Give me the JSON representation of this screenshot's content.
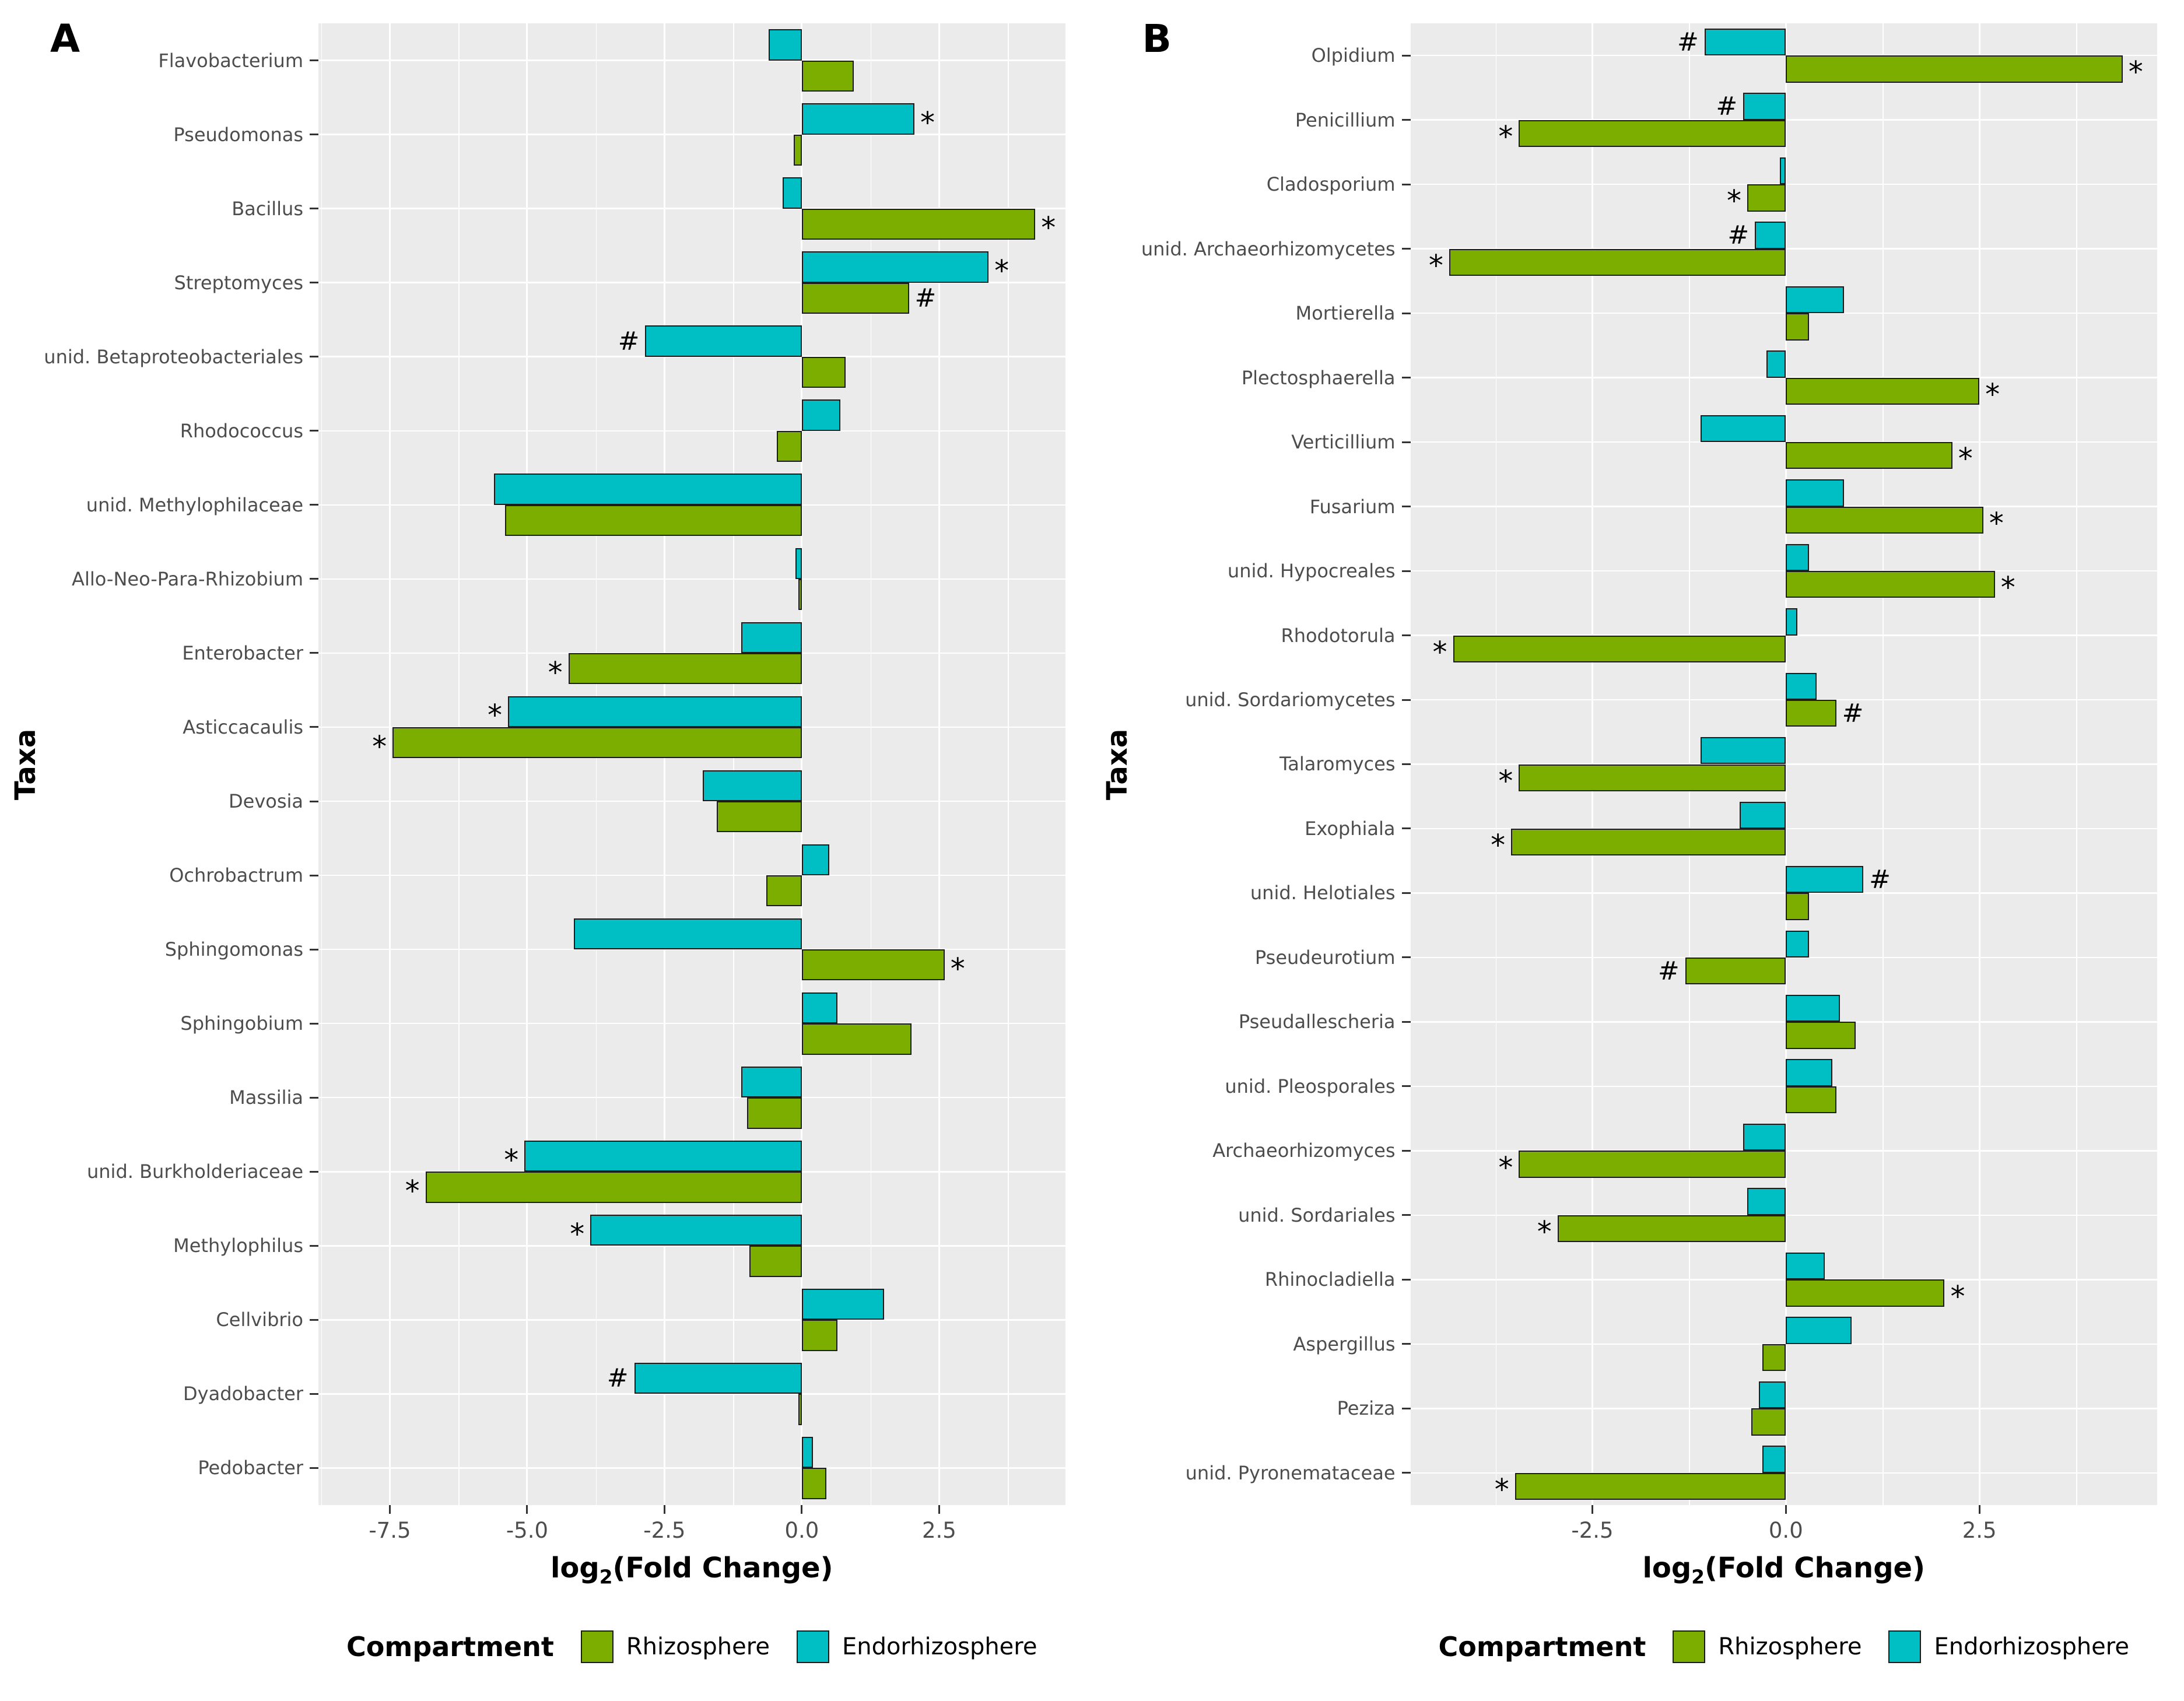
{
  "legend": {
    "title": "Compartment",
    "items": [
      {
        "label": "Rhizosphere",
        "key": "rhizosphere",
        "color": "#7cae00"
      },
      {
        "label": "Endorhizosphere",
        "key": "endorhizosphere",
        "color": "#00bfc4"
      }
    ]
  },
  "colors": {
    "rhizosphere": "#7cae00",
    "endorhizosphere": "#00bfc4",
    "panel_bg": "#ebebeb",
    "grid": "#ffffff",
    "bar_border": "#1c1c1c",
    "axis_text": "#4d4d4d"
  },
  "chart_data": [
    {
      "panel_label": "A",
      "type": "bar",
      "orientation": "horizontal",
      "xlabel": "log2(Fold Change)",
      "xlabel_prefix": "log",
      "xlabel_sub": "2",
      "xlabel_suffix": "(Fold Change)",
      "ylabel": "Taxa",
      "xlim": [
        -8.8,
        4.8
      ],
      "xticks": [
        -7.5,
        -5.0,
        -2.5,
        0.0,
        2.5
      ],
      "xtick_labels": [
        "-7.5",
        "-5.0",
        "-2.5",
        "0.0",
        "2.5"
      ],
      "grid": true,
      "legend_position": "bottom",
      "series_names": [
        "Rhizosphere",
        "Endorhizosphere"
      ],
      "taxa": [
        {
          "label": "Flavobacterium",
          "rhizosphere": 0.95,
          "rhizosphere_sig": "",
          "endorhizosphere": -0.6,
          "endorhizosphere_sig": ""
        },
        {
          "label": "Pseudomonas",
          "rhizosphere": -0.15,
          "rhizosphere_sig": "",
          "endorhizosphere": 2.05,
          "endorhizosphere_sig": "*"
        },
        {
          "label": "Bacillus",
          "rhizosphere": 4.25,
          "rhizosphere_sig": "*",
          "endorhizosphere": -0.35,
          "endorhizosphere_sig": ""
        },
        {
          "label": "Streptomyces",
          "rhizosphere": 1.95,
          "rhizosphere_sig": "#",
          "endorhizosphere": 3.4,
          "endorhizosphere_sig": "*"
        },
        {
          "label": "unid. Betaproteobacteriales",
          "rhizosphere": 0.8,
          "rhizosphere_sig": "",
          "endorhizosphere": -2.85,
          "endorhizosphere_sig": "#"
        },
        {
          "label": "Rhodococcus",
          "rhizosphere": -0.45,
          "rhizosphere_sig": "",
          "endorhizosphere": 0.7,
          "endorhizosphere_sig": ""
        },
        {
          "label": "unid. Methylophilaceae",
          "rhizosphere": -5.4,
          "rhizosphere_sig": "",
          "endorhizosphere": -5.6,
          "endorhizosphere_sig": ""
        },
        {
          "label": "Allo-Neo-Para-Rhizobium",
          "rhizosphere": -0.06,
          "rhizosphere_sig": "",
          "endorhizosphere": -0.12,
          "endorhizosphere_sig": ""
        },
        {
          "label": "Enterobacter",
          "rhizosphere": -4.25,
          "rhizosphere_sig": "*",
          "endorhizosphere": -1.1,
          "endorhizosphere_sig": ""
        },
        {
          "label": "Asticcacaulis",
          "rhizosphere": -7.45,
          "rhizosphere_sig": "*",
          "endorhizosphere": -5.35,
          "endorhizosphere_sig": "*"
        },
        {
          "label": "Devosia",
          "rhizosphere": -1.55,
          "rhizosphere_sig": "",
          "endorhizosphere": -1.8,
          "endorhizosphere_sig": ""
        },
        {
          "label": "Ochrobactrum",
          "rhizosphere": -0.65,
          "rhizosphere_sig": "",
          "endorhizosphere": 0.5,
          "endorhizosphere_sig": ""
        },
        {
          "label": "Sphingomonas",
          "rhizosphere": 2.6,
          "rhizosphere_sig": "*",
          "endorhizosphere": -4.15,
          "endorhizosphere_sig": ""
        },
        {
          "label": "Sphingobium",
          "rhizosphere": 2.0,
          "rhizosphere_sig": "",
          "endorhizosphere": 0.65,
          "endorhizosphere_sig": ""
        },
        {
          "label": "Massilia",
          "rhizosphere": -1.0,
          "rhizosphere_sig": "",
          "endorhizosphere": -1.1,
          "endorhizosphere_sig": ""
        },
        {
          "label": "unid. Burkholderiaceae",
          "rhizosphere": -6.85,
          "rhizosphere_sig": "*",
          "endorhizosphere": -5.05,
          "endorhizosphere_sig": "*"
        },
        {
          "label": "Methylophilus",
          "rhizosphere": -0.95,
          "rhizosphere_sig": "",
          "endorhizosphere": -3.85,
          "endorhizosphere_sig": "*"
        },
        {
          "label": "Cellvibrio",
          "rhizosphere": 0.65,
          "rhizosphere_sig": "",
          "endorhizosphere": 1.5,
          "endorhizosphere_sig": ""
        },
        {
          "label": "Dyadobacter",
          "rhizosphere": -0.06,
          "rhizosphere_sig": "",
          "endorhizosphere": -3.05,
          "endorhizosphere_sig": "#"
        },
        {
          "label": "Pedobacter",
          "rhizosphere": 0.45,
          "rhizosphere_sig": "",
          "endorhizosphere": 0.2,
          "endorhizosphere_sig": ""
        }
      ]
    },
    {
      "panel_label": "B",
      "type": "bar",
      "orientation": "horizontal",
      "xlabel": "log2(Fold Change)",
      "xlabel_prefix": "log",
      "xlabel_sub": "2",
      "xlabel_suffix": "(Fold Change)",
      "ylabel": "Taxa",
      "xlim": [
        -4.85,
        4.8
      ],
      "xticks": [
        -2.5,
        0.0,
        2.5
      ],
      "xtick_labels": [
        "-2.5",
        "0.0",
        "2.5"
      ],
      "grid": true,
      "legend_position": "bottom",
      "series_names": [
        "Rhizosphere",
        "Endorhizosphere"
      ],
      "taxa": [
        {
          "label": "Olpidium",
          "rhizosphere": 4.35,
          "rhizosphere_sig": "*",
          "endorhizosphere": -1.05,
          "endorhizosphere_sig": "#"
        },
        {
          "label": "Penicillium",
          "rhizosphere": -3.45,
          "rhizosphere_sig": "*",
          "endorhizosphere": -0.55,
          "endorhizosphere_sig": "#"
        },
        {
          "label": "Cladosporium",
          "rhizosphere": -0.5,
          "rhizosphere_sig": "*",
          "endorhizosphere": -0.08,
          "endorhizosphere_sig": ""
        },
        {
          "label": "unid. Archaeorhizomycetes",
          "rhizosphere": -4.35,
          "rhizosphere_sig": "*",
          "endorhizosphere": -0.4,
          "endorhizosphere_sig": "#"
        },
        {
          "label": "Mortierella",
          "rhizosphere": 0.3,
          "rhizosphere_sig": "",
          "endorhizosphere": 0.75,
          "endorhizosphere_sig": ""
        },
        {
          "label": "Plectosphaerella",
          "rhizosphere": 2.5,
          "rhizosphere_sig": "*",
          "endorhizosphere": -0.25,
          "endorhizosphere_sig": ""
        },
        {
          "label": "Verticillium",
          "rhizosphere": 2.15,
          "rhizosphere_sig": "*",
          "endorhizosphere": -1.1,
          "endorhizosphere_sig": ""
        },
        {
          "label": "Fusarium",
          "rhizosphere": 2.55,
          "rhizosphere_sig": "*",
          "endorhizosphere": 0.75,
          "endorhizosphere_sig": ""
        },
        {
          "label": "unid. Hypocreales",
          "rhizosphere": 2.7,
          "rhizosphere_sig": "*",
          "endorhizosphere": 0.3,
          "endorhizosphere_sig": ""
        },
        {
          "label": "Rhodotorula",
          "rhizosphere": -4.3,
          "rhizosphere_sig": "*",
          "endorhizosphere": 0.15,
          "endorhizosphere_sig": ""
        },
        {
          "label": "unid. Sordariomycetes",
          "rhizosphere": 0.65,
          "rhizosphere_sig": "#",
          "endorhizosphere": 0.4,
          "endorhizosphere_sig": ""
        },
        {
          "label": "Talaromyces",
          "rhizosphere": -3.45,
          "rhizosphere_sig": "*",
          "endorhizosphere": -1.1,
          "endorhizosphere_sig": ""
        },
        {
          "label": "Exophiala",
          "rhizosphere": -3.55,
          "rhizosphere_sig": "*",
          "endorhizosphere": -0.6,
          "endorhizosphere_sig": ""
        },
        {
          "label": "unid. Helotiales",
          "rhizosphere": 0.3,
          "rhizosphere_sig": "",
          "endorhizosphere": 1.0,
          "endorhizosphere_sig": "#"
        },
        {
          "label": "Pseudeurotium",
          "rhizosphere": -1.3,
          "rhizosphere_sig": "#",
          "endorhizosphere": 0.3,
          "endorhizosphere_sig": ""
        },
        {
          "label": "Pseudallescheria",
          "rhizosphere": 0.9,
          "rhizosphere_sig": "",
          "endorhizosphere": 0.7,
          "endorhizosphere_sig": ""
        },
        {
          "label": "unid. Pleosporales",
          "rhizosphere": 0.65,
          "rhizosphere_sig": "",
          "endorhizosphere": 0.6,
          "endorhizosphere_sig": ""
        },
        {
          "label": "Archaeorhizomyces",
          "rhizosphere": -3.45,
          "rhizosphere_sig": "*",
          "endorhizosphere": -0.55,
          "endorhizosphere_sig": ""
        },
        {
          "label": "unid. Sordariales",
          "rhizosphere": -2.95,
          "rhizosphere_sig": "*",
          "endorhizosphere": -0.5,
          "endorhizosphere_sig": ""
        },
        {
          "label": "Rhinocladiella",
          "rhizosphere": 2.05,
          "rhizosphere_sig": "*",
          "endorhizosphere": 0.5,
          "endorhizosphere_sig": ""
        },
        {
          "label": "Aspergillus",
          "rhizosphere": -0.3,
          "rhizosphere_sig": "",
          "endorhizosphere": 0.85,
          "endorhizosphere_sig": ""
        },
        {
          "label": "Peziza",
          "rhizosphere": -0.45,
          "rhizosphere_sig": "",
          "endorhizosphere": -0.35,
          "endorhizosphere_sig": ""
        },
        {
          "label": "unid. Pyronemataceae",
          "rhizosphere": -3.5,
          "rhizosphere_sig": "*",
          "endorhizosphere": -0.3,
          "endorhizosphere_sig": ""
        }
      ]
    }
  ]
}
